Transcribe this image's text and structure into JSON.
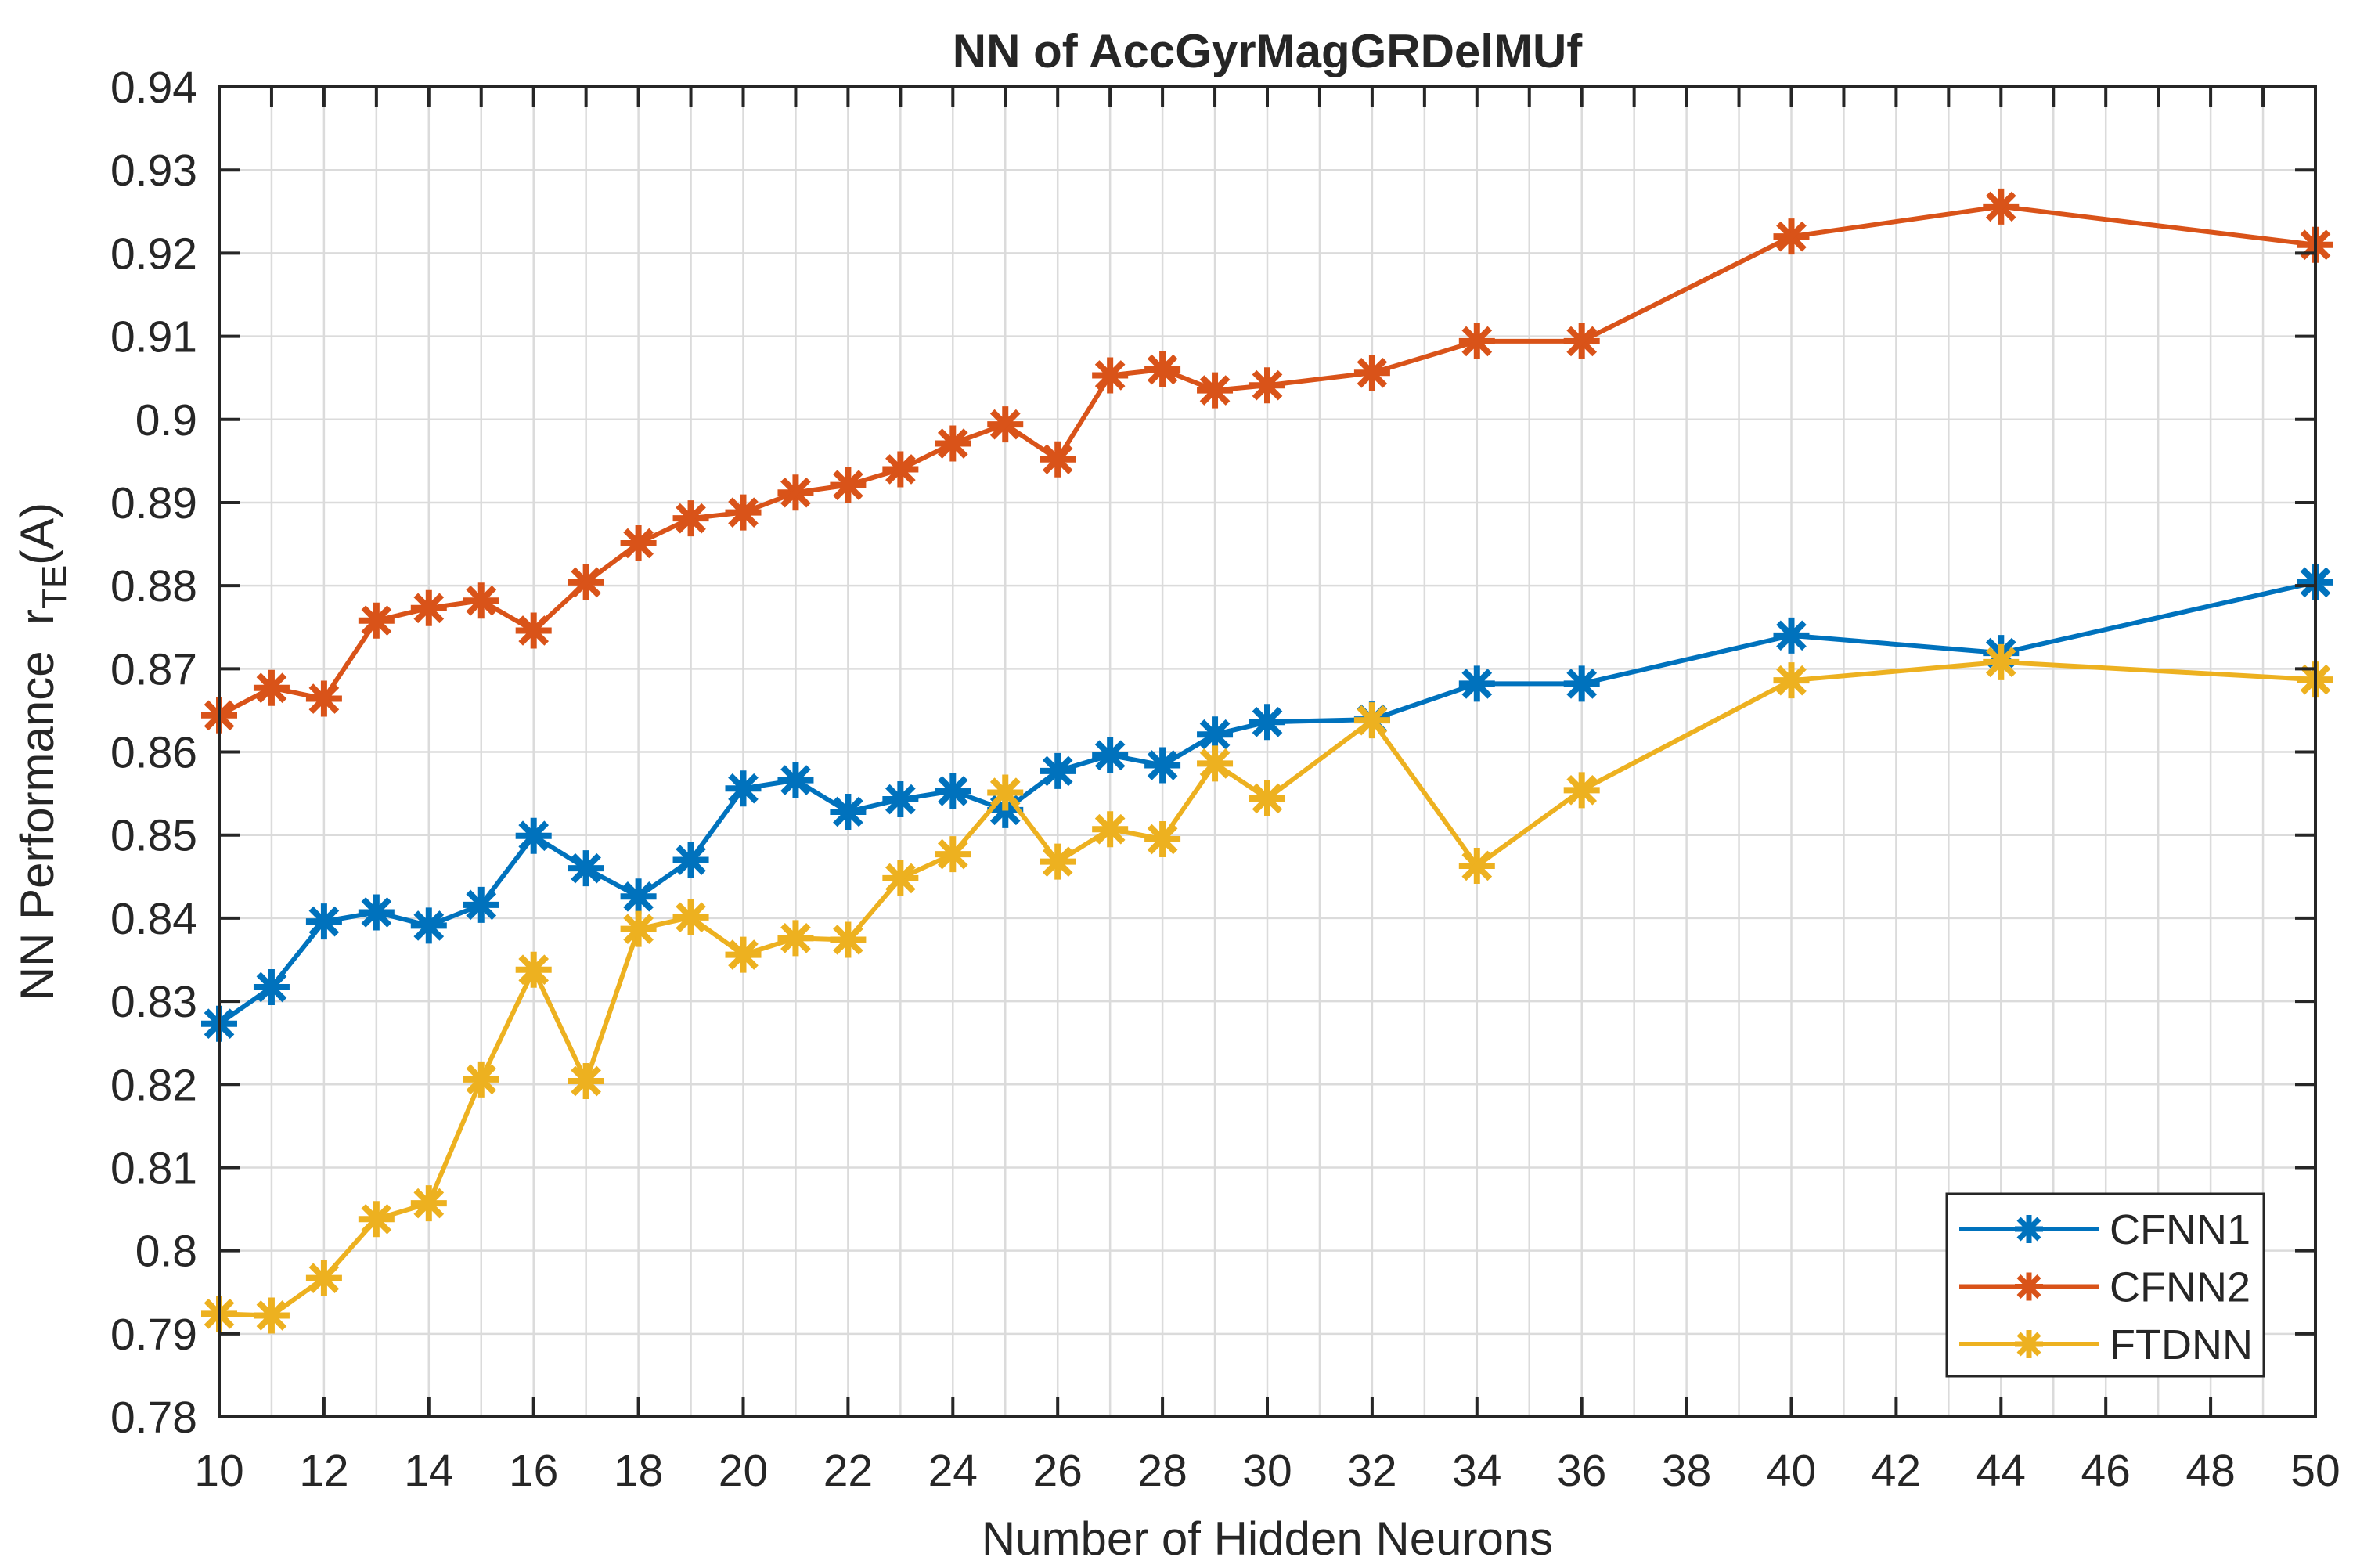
{
  "chart_data": {
    "type": "line",
    "title": "NN of AccGyrMagGRDelMUf",
    "xlabel": "Number of Hidden Neurons",
    "ylabel_parts": {
      "prefix": "NN Performance  r",
      "sub": "TE",
      "suffix": "(A)"
    },
    "x": [
      10,
      11,
      12,
      13,
      14,
      15,
      16,
      17,
      18,
      19,
      20,
      21,
      22,
      23,
      24,
      25,
      26,
      27,
      28,
      29,
      30,
      32,
      34,
      36,
      40,
      44,
      50
    ],
    "series": [
      {
        "name": "CFNN1",
        "color": "#0072BD",
        "values": [
          0.8273,
          0.8317,
          0.8396,
          0.8407,
          0.8391,
          0.8416,
          0.8499,
          0.846,
          0.8426,
          0.847,
          0.8556,
          0.8566,
          0.8528,
          0.8543,
          0.8553,
          0.853,
          0.8577,
          0.8596,
          0.8584,
          0.8621,
          0.8636,
          0.8639,
          0.8682,
          0.8682,
          0.874,
          0.8719,
          0.8804
        ]
      },
      {
        "name": "CFNN2",
        "color": "#D95319",
        "values": [
          0.8644,
          0.8677,
          0.8664,
          0.8758,
          0.8773,
          0.8782,
          0.8746,
          0.8804,
          0.8851,
          0.8881,
          0.8888,
          0.8912,
          0.8921,
          0.894,
          0.8971,
          0.8994,
          0.8952,
          0.9053,
          0.906,
          0.9035,
          0.9041,
          0.9056,
          0.9094,
          0.9094,
          0.922,
          0.9256,
          0.921
        ]
      },
      {
        "name": "FTDNN",
        "color": "#EDB120",
        "values": [
          0.7924,
          0.7922,
          0.7967,
          0.8038,
          0.8057,
          0.8206,
          0.8338,
          0.8204,
          0.8387,
          0.8401,
          0.8356,
          0.8376,
          0.8374,
          0.8448,
          0.8477,
          0.8551,
          0.8468,
          0.8507,
          0.8495,
          0.8586,
          0.8544,
          0.8638,
          0.8463,
          0.8554,
          0.8686,
          0.8708,
          0.8687
        ]
      }
    ],
    "xlim": [
      10,
      50
    ],
    "ylim": [
      0.78,
      0.94
    ],
    "xtick_label_step": 2,
    "xgrid_step": 1,
    "ytick_step": 0.01,
    "x_tick_labels": [
      "10",
      "12",
      "14",
      "16",
      "18",
      "20",
      "22",
      "24",
      "26",
      "28",
      "30",
      "32",
      "34",
      "36",
      "38",
      "40",
      "42",
      "44",
      "46",
      "48",
      "50"
    ],
    "y_tick_labels": [
      "0.78",
      "0.79",
      "0.8",
      "0.81",
      "0.82",
      "0.83",
      "0.84",
      "0.85",
      "0.86",
      "0.87",
      "0.88",
      "0.89",
      "0.9",
      "0.91",
      "0.92",
      "0.93",
      "0.94"
    ],
    "legend_position": "bottom-right",
    "legend_entries": [
      "CFNN1",
      "CFNN2",
      "FTDNN"
    ],
    "grid": true,
    "marker": "asterisk",
    "colors": {
      "axis": "#262626",
      "grid": "#DBDBDB",
      "background": "#FFFFFF",
      "blue": "#0072BD",
      "orange": "#D95319",
      "yellow": "#EDB120"
    }
  }
}
